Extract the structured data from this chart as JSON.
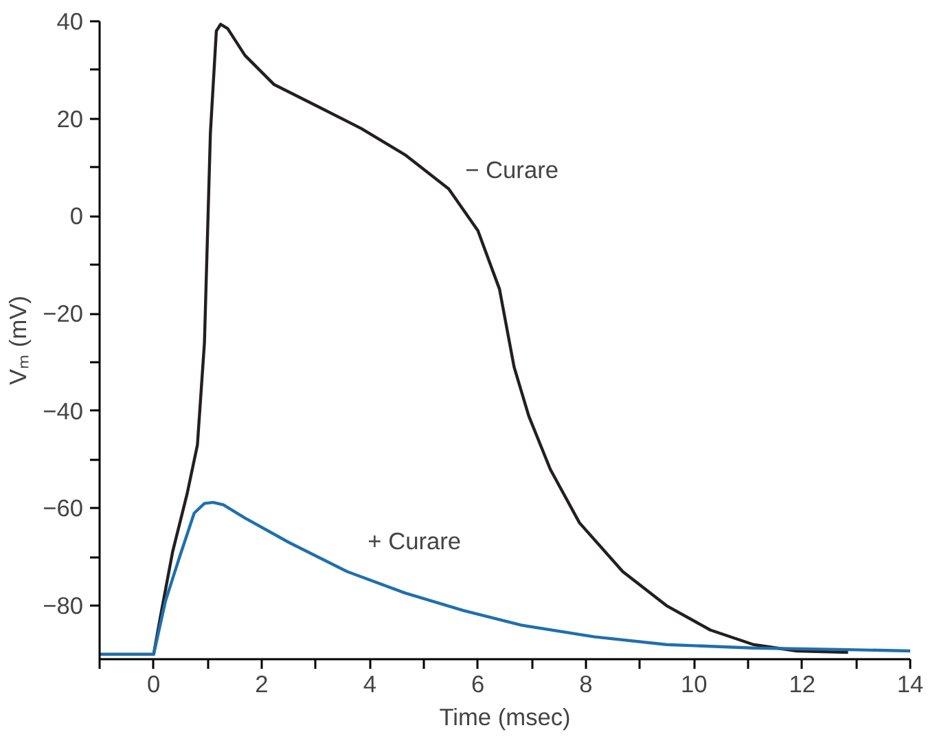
{
  "chart_data": {
    "type": "line",
    "xlabel": "Time (msec)",
    "ylabel": "Vₘ (mV)",
    "xlim": [
      -1,
      14
    ],
    "ylim": [
      -91,
      40
    ],
    "xticks": [
      {
        "value": -1,
        "label": null
      },
      0,
      {
        "value": 1,
        "label": null
      },
      2,
      {
        "value": 3,
        "label": null
      },
      4,
      {
        "value": 5,
        "label": null
      },
      6,
      {
        "value": 7,
        "label": null
      },
      8,
      {
        "value": 9,
        "label": null
      },
      10,
      {
        "value": 11,
        "label": null
      },
      12,
      {
        "value": 13,
        "label": null
      },
      14
    ],
    "yticks": [
      {
        "value": -80,
        "label": "−80"
      },
      {
        "value": -70,
        "label": null
      },
      {
        "value": -60,
        "label": "−60"
      },
      {
        "value": -50,
        "label": null
      },
      {
        "value": -40,
        "label": "−40"
      },
      {
        "value": -30,
        "label": null
      },
      {
        "value": -20,
        "label": "−20"
      },
      {
        "value": -10,
        "label": null
      },
      0,
      {
        "value": 10,
        "label": null
      },
      20,
      {
        "value": 30,
        "label": null
      },
      40
    ],
    "grid": false,
    "legend": false,
    "line_style": "solid",
    "series": [
      {
        "name": "− Curare",
        "color": "#231f20",
        "x": [
          -1.0,
          0,
          0.13,
          0.35,
          0.62,
          0.81,
          0.94,
          1.05,
          1.16,
          1.24,
          1.37,
          1.69,
          2.23,
          3.04,
          3.84,
          4.65,
          5.46,
          6.0,
          6.4,
          6.67,
          6.94,
          7.34,
          7.88,
          8.68,
          9.49,
          10.3,
          11.1,
          11.9,
          12.85
        ],
        "values": [
          -90,
          -90,
          -82,
          -69,
          -57,
          -47,
          -26,
          17,
          38,
          39.4,
          38.5,
          33,
          27,
          22.5,
          18,
          12.6,
          5.6,
          -3,
          -15,
          -31,
          -41,
          -52,
          -63,
          -73,
          -80,
          -85,
          -88,
          -89.3,
          -89.6
        ]
      },
      {
        "name": "+ Curare",
        "color": "#1f6fad",
        "x": [
          -1.0,
          0,
          0.22,
          0.48,
          0.75,
          0.94,
          1.1,
          1.29,
          1.69,
          2.5,
          3.58,
          4.65,
          5.73,
          6.8,
          8.15,
          9.49,
          11.1,
          12.7,
          14
        ],
        "values": [
          -90,
          -90,
          -79,
          -70,
          -61,
          -59,
          -58.8,
          -59.3,
          -62,
          -67,
          -73,
          -77.4,
          -81,
          -84,
          -86.4,
          -88,
          -88.7,
          -89,
          -89.3
        ]
      }
    ]
  }
}
